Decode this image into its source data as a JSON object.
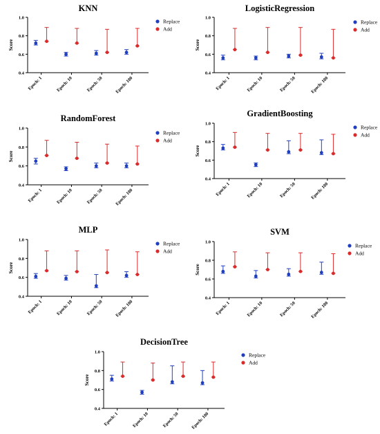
{
  "legend": {
    "replace_label": "Replace",
    "add_label": "Add"
  },
  "colors": {
    "replace": "#1f3fbf",
    "add": "#d92b2b",
    "axis": "#000000"
  },
  "chart_data": [
    {
      "type": "scatter",
      "title": "KNN",
      "ylabel": "Score",
      "categories": [
        "Epoch: 1",
        "Epoch: 10",
        "Epoch: 50",
        "Epoch: 100"
      ],
      "yticks": [
        "0.4",
        "0.6",
        "0.8",
        "1.0"
      ],
      "ylim": [
        0.4,
        1.0
      ],
      "legend_position": "top-right",
      "series": [
        {
          "name": "Replace",
          "values": [
            0.72,
            0.6,
            0.61,
            0.62
          ],
          "error_low": [
            0.7,
            0.58,
            0.59,
            0.6
          ],
          "error_high": [
            0.75,
            0.62,
            0.64,
            0.65
          ]
        },
        {
          "name": "Add",
          "values": [
            0.74,
            0.72,
            0.62,
            0.69
          ],
          "error_low": [
            0.74,
            0.72,
            0.62,
            0.69
          ],
          "error_high": [
            0.89,
            0.88,
            0.87,
            0.88
          ]
        }
      ]
    },
    {
      "type": "scatter",
      "title": "LogisticRegression",
      "ylabel": "Score",
      "categories": [
        "Epoch: 1",
        "Epoch: 10",
        "Epoch: 50",
        "Epoch: 100"
      ],
      "yticks": [
        "0.4",
        "0.6",
        "0.8",
        "1.0"
      ],
      "ylim": [
        0.4,
        1.0
      ],
      "legend_position": "top-right",
      "series": [
        {
          "name": "Replace",
          "values": [
            0.56,
            0.56,
            0.58,
            0.57
          ],
          "error_low": [
            0.54,
            0.54,
            0.56,
            0.55
          ],
          "error_high": [
            0.59,
            0.58,
            0.6,
            0.61
          ]
        },
        {
          "name": "Add",
          "values": [
            0.65,
            0.62,
            0.59,
            0.56
          ],
          "error_low": [
            0.65,
            0.62,
            0.59,
            0.56
          ],
          "error_high": [
            0.88,
            0.89,
            0.89,
            0.87
          ]
        }
      ]
    },
    {
      "type": "scatter",
      "title": "RandomForest",
      "ylabel": "Score",
      "categories": [
        "Epoch: 1",
        "Epoch: 10",
        "Epoch: 50",
        "Epoch: 100"
      ],
      "yticks": [
        "0.4",
        "0.6",
        "0.8",
        "1.0"
      ],
      "ylim": [
        0.4,
        1.0
      ],
      "legend_position": "top-right",
      "series": [
        {
          "name": "Replace",
          "values": [
            0.65,
            0.57,
            0.6,
            0.6
          ],
          "error_low": [
            0.62,
            0.55,
            0.58,
            0.58
          ],
          "error_high": [
            0.68,
            0.59,
            0.63,
            0.63
          ]
        },
        {
          "name": "Add",
          "values": [
            0.71,
            0.68,
            0.63,
            0.62
          ],
          "error_low": [
            0.71,
            0.68,
            0.63,
            0.62
          ],
          "error_high": [
            0.87,
            0.85,
            0.83,
            0.81
          ]
        }
      ]
    },
    {
      "type": "scatter",
      "title": "GradientBoosting",
      "ylabel": "Score",
      "categories": [
        "Epoch: 1",
        "Epoch: 10",
        "Epoch: 50",
        "Epoch: 100"
      ],
      "yticks": [
        "0.4",
        "0.6",
        "0.8",
        "1.0"
      ],
      "ylim": [
        0.4,
        1.0
      ],
      "legend_position": "top-right",
      "series": [
        {
          "name": "Replace",
          "values": [
            0.73,
            0.55,
            0.69,
            0.68
          ],
          "error_low": [
            0.71,
            0.53,
            0.67,
            0.66
          ],
          "error_high": [
            0.77,
            0.57,
            0.81,
            0.82
          ]
        },
        {
          "name": "Add",
          "values": [
            0.74,
            0.71,
            0.71,
            0.67
          ],
          "error_low": [
            0.74,
            0.71,
            0.71,
            0.67
          ],
          "error_high": [
            0.9,
            0.89,
            0.89,
            0.88
          ]
        }
      ]
    },
    {
      "type": "scatter",
      "title": "MLP",
      "ylabel": "Score",
      "categories": [
        "Epoch: 1",
        "Epoch: 10",
        "Epoch: 50",
        "Epoch: 100"
      ],
      "yticks": [
        "0.4",
        "0.6",
        "0.8",
        "1.0"
      ],
      "ylim": [
        0.4,
        1.0
      ],
      "legend_position": "top-right",
      "series": [
        {
          "name": "Replace",
          "values": [
            0.61,
            0.59,
            0.51,
            0.62
          ],
          "error_low": [
            0.59,
            0.57,
            0.49,
            0.6
          ],
          "error_high": [
            0.64,
            0.62,
            0.63,
            0.66
          ]
        },
        {
          "name": "Add",
          "values": [
            0.67,
            0.66,
            0.65,
            0.63
          ],
          "error_low": [
            0.67,
            0.66,
            0.65,
            0.63
          ],
          "error_high": [
            0.88,
            0.88,
            0.89,
            0.87
          ]
        }
      ]
    },
    {
      "type": "scatter",
      "title": "SVM",
      "ylabel": "Score",
      "categories": [
        "Epoch: 1",
        "Epoch: 10",
        "Epoch: 50",
        "Epoch: 100"
      ],
      "yticks": [
        "0.4",
        "0.6",
        "0.8",
        "1.0"
      ],
      "ylim": [
        0.4,
        1.0
      ],
      "legend_position": "top-right",
      "series": [
        {
          "name": "Replace",
          "values": [
            0.68,
            0.63,
            0.65,
            0.67
          ],
          "error_low": [
            0.66,
            0.61,
            0.63,
            0.65
          ],
          "error_high": [
            0.74,
            0.69,
            0.71,
            0.78
          ]
        },
        {
          "name": "Add",
          "values": [
            0.73,
            0.7,
            0.68,
            0.66
          ],
          "error_low": [
            0.73,
            0.7,
            0.68,
            0.66
          ],
          "error_high": [
            0.89,
            0.88,
            0.88,
            0.87
          ]
        }
      ]
    },
    {
      "type": "scatter",
      "title": "DecisionTree",
      "ylabel": "Score",
      "categories": [
        "Epoch: 1",
        "Epoch: 10",
        "Epoch: 50",
        "Epoch: 100"
      ],
      "yticks": [
        "0.4",
        "0.6",
        "0.8",
        "1.0"
      ],
      "ylim": [
        0.4,
        1.0
      ],
      "legend_position": "top-right",
      "series": [
        {
          "name": "Replace",
          "values": [
            0.71,
            0.57,
            0.68,
            0.67
          ],
          "error_low": [
            0.69,
            0.55,
            0.66,
            0.65
          ],
          "error_high": [
            0.75,
            0.59,
            0.85,
            0.8
          ]
        },
        {
          "name": "Add",
          "values": [
            0.74,
            0.7,
            0.74,
            0.73
          ],
          "error_low": [
            0.74,
            0.7,
            0.74,
            0.73
          ],
          "error_high": [
            0.89,
            0.88,
            0.89,
            0.89
          ]
        }
      ]
    }
  ]
}
